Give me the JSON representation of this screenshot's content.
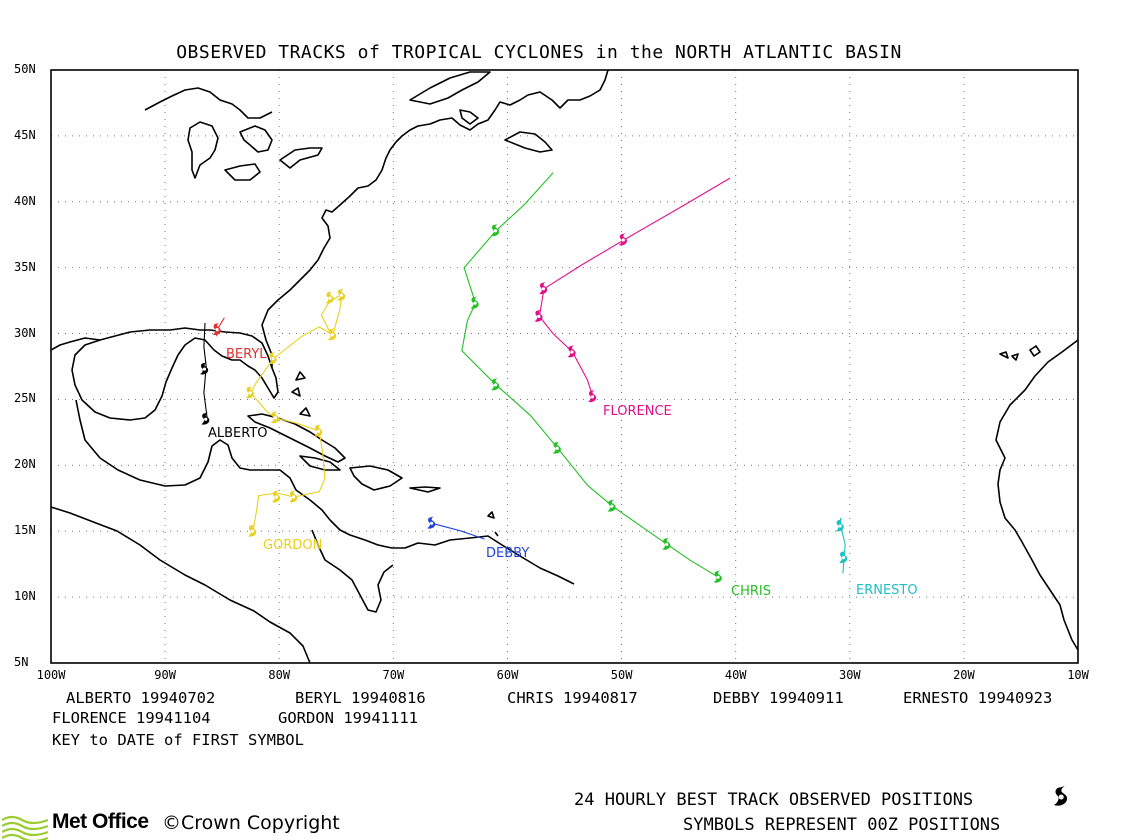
{
  "title": "OBSERVED TRACKS of TROPICAL CYCLONES in the NORTH ATLANTIC BASIN",
  "axes": {
    "lat_ticks": [
      "50N",
      "45N",
      "40N",
      "35N",
      "30N",
      "25N",
      "20N",
      "15N",
      "10N",
      "5N"
    ],
    "lon_ticks": [
      "100W",
      "90W",
      "80W",
      "70W",
      "60W",
      "50W",
      "40W",
      "30W",
      "20W",
      "10W"
    ],
    "lat_values": [
      50,
      45,
      40,
      35,
      30,
      25,
      20,
      15,
      10,
      5
    ],
    "lon_values": [
      -100,
      -90,
      -80,
      -70,
      -60,
      -50,
      -40,
      -30,
      -20,
      -10
    ],
    "grid": "dotted"
  },
  "storms": [
    {
      "name": "ALBERTO",
      "color": "#000000",
      "label": "ALBERTO",
      "track": [
        [
          -86.5,
          30.8
        ],
        [
          -86.6,
          29.0
        ],
        [
          -86.4,
          27.5
        ],
        [
          -86.6,
          25.5
        ],
        [
          -86.3,
          23.5
        ]
      ],
      "symbols": [
        [
          -86.5,
          27.3
        ],
        [
          -86.4,
          23.5
        ]
      ]
    },
    {
      "name": "BERYL",
      "color": "#e03030",
      "label": "BERYL",
      "track": [
        [
          -84.8,
          31.2
        ],
        [
          -85.3,
          30.5
        ],
        [
          -85.5,
          29.8
        ]
      ],
      "symbols": [
        [
          -85.4,
          30.3
        ]
      ]
    },
    {
      "name": "CHRIS",
      "color": "#22c022",
      "label": "CHRIS",
      "track": [
        [
          -41.5,
          11.5
        ],
        [
          -44.0,
          12.8
        ],
        [
          -46.0,
          14.0
        ],
        [
          -48.5,
          15.5
        ],
        [
          -50.8,
          16.9
        ],
        [
          -53.0,
          18.5
        ],
        [
          -55.6,
          21.3
        ],
        [
          -58.0,
          23.8
        ],
        [
          -61.0,
          26.1
        ],
        [
          -64.0,
          28.7
        ],
        [
          -63.5,
          31.0
        ],
        [
          -62.8,
          32.3
        ],
        [
          -63.8,
          35.0
        ],
        [
          -61.0,
          37.8
        ],
        [
          -58.5,
          39.8
        ],
        [
          -56.0,
          42.2
        ]
      ],
      "symbols": [
        [
          -41.5,
          11.5
        ],
        [
          -46.0,
          14.0
        ],
        [
          -50.8,
          16.9
        ],
        [
          -55.6,
          21.3
        ],
        [
          -61.0,
          26.1
        ],
        [
          -62.8,
          32.3
        ],
        [
          -61.0,
          37.8
        ]
      ]
    },
    {
      "name": "DEBBY",
      "color": "#2244dd",
      "label": "DEBBY",
      "track": [
        [
          -66.6,
          15.6
        ],
        [
          -64.0,
          15.0
        ],
        [
          -62.0,
          14.4
        ]
      ],
      "symbols": [
        [
          -66.6,
          15.6
        ]
      ]
    },
    {
      "name": "ERNESTO",
      "color": "#20c0c0",
      "label": "ERNESTO",
      "track": [
        [
          -30.8,
          16.0
        ],
        [
          -30.8,
          15.4
        ],
        [
          -30.4,
          14.0
        ],
        [
          -30.5,
          13.0
        ],
        [
          -30.6,
          11.8
        ]
      ],
      "symbols": [
        [
          -30.8,
          15.4
        ],
        [
          -30.5,
          13.0
        ]
      ]
    },
    {
      "name": "FLORENCE",
      "color": "#e0108a",
      "label": "FLORENCE",
      "track": [
        [
          -52.5,
          25.2
        ],
        [
          -53.0,
          26.5
        ],
        [
          -54.3,
          28.6
        ],
        [
          -56.0,
          30.0
        ],
        [
          -57.2,
          31.3
        ],
        [
          -56.8,
          33.4
        ],
        [
          -53.5,
          35.2
        ],
        [
          -49.8,
          37.1
        ],
        [
          -45.0,
          39.5
        ],
        [
          -40.5,
          41.8
        ]
      ],
      "symbols": [
        [
          -52.5,
          25.2
        ],
        [
          -54.3,
          28.6
        ],
        [
          -57.2,
          31.3
        ],
        [
          -56.8,
          33.4
        ],
        [
          -49.8,
          37.1
        ]
      ]
    },
    {
      "name": "GORDON",
      "color": "#e8d020",
      "label": "GORDON",
      "track": [
        [
          -82.3,
          15.0
        ],
        [
          -82.0,
          16.5
        ],
        [
          -81.8,
          17.7
        ],
        [
          -80.2,
          17.9
        ],
        [
          -78.7,
          17.6
        ],
        [
          -76.5,
          18.0
        ],
        [
          -76.0,
          19.0
        ],
        [
          -76.2,
          21.0
        ],
        [
          -76.5,
          22.6
        ],
        [
          -78.5,
          23.2
        ],
        [
          -80.3,
          23.6
        ],
        [
          -81.0,
          24.0
        ],
        [
          -82.5,
          25.5
        ],
        [
          -82.0,
          26.3
        ],
        [
          -80.5,
          28.1
        ],
        [
          -78.0,
          29.8
        ],
        [
          -76.5,
          30.5
        ],
        [
          -75.5,
          30.0
        ],
        [
          -76.3,
          31.4
        ],
        [
          -75.6,
          32.4
        ],
        [
          -74.5,
          33.0
        ],
        [
          -74.7,
          31.8
        ],
        [
          -75.3,
          29.9
        ]
      ],
      "symbols": [
        [
          -82.3,
          15.0
        ],
        [
          -80.2,
          17.6
        ],
        [
          -78.7,
          17.6
        ],
        [
          -76.5,
          22.6
        ],
        [
          -80.3,
          23.6
        ],
        [
          -82.5,
          25.5
        ],
        [
          -80.5,
          28.1
        ],
        [
          -75.5,
          32.7
        ],
        [
          -74.5,
          32.9
        ],
        [
          -75.3,
          29.9
        ]
      ]
    }
  ],
  "legend": {
    "entries": [
      "ALBERTO 19940702",
      "BERYL 19940816",
      "CHRIS 19940817",
      "DEBBY 19940911",
      "ERNESTO 19940923",
      "FLORENCE 19941104",
      "GORDON 19941111"
    ],
    "key_note": "KEY to DATE of FIRST SYMBOL"
  },
  "footer": {
    "line1": "24 HOURLY BEST TRACK OBSERVED POSITIONS",
    "line2": "SYMBOLS REPRESENT 00Z POSITIONS",
    "brand": "Met Office",
    "copyright": "©Crown Copyright",
    "symbol_icon": "tropical-cyclone-icon"
  }
}
